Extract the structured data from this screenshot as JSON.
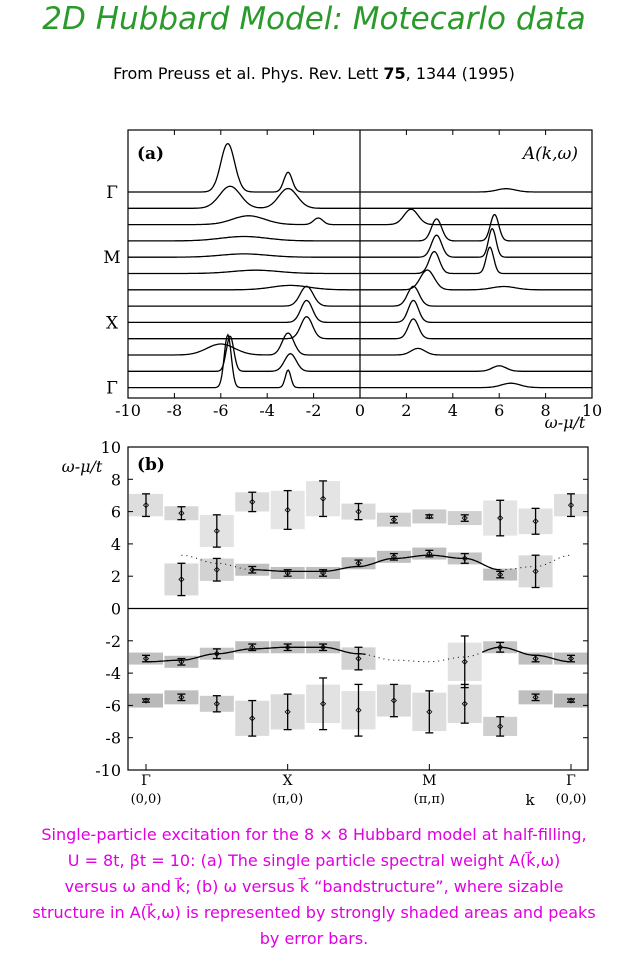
{
  "header": {
    "title": "2D Hubbard Model: Motecarlo data",
    "citation_prefix": "From Preuss et al. Phys. Rev. Lett ",
    "citation_volume": "75",
    "citation_suffix": ", 1344 (1995)"
  },
  "caption": {
    "line1": "Single-particle excitation for the 8 × 8 Hubbard model at half-filling,",
    "line2": "U = 8t, βt = 10: (a) The single particle spectral weight A(k⃗,ω)",
    "line3": "versus ω and k⃗; (b) ω versus k⃗ “bandstructure”, where sizable",
    "line4": "structure in A(k⃗,ω) is represented by strongly shaded areas and peaks",
    "line5": "by error bars."
  },
  "chart_data": [
    {
      "type": "line",
      "panel_label": "(a)",
      "corner_label": "A(k,ω)",
      "xlabel": "ω-μ/t",
      "xlim": [
        -10,
        10
      ],
      "xticks": [
        "-10",
        "-8",
        "-6",
        "-4",
        "-2",
        "0",
        "2",
        "4",
        "6",
        "8",
        "10"
      ],
      "k_labels": [
        "Γ",
        "M",
        "X",
        "Γ"
      ],
      "curves": [
        {
          "offset": 0,
          "peaks": [
            [
              -5.7,
              0.3,
              2.2
            ],
            [
              -3.1,
              0.18,
              0.9
            ],
            [
              6.3,
              0.4,
              0.15
            ]
          ]
        },
        {
          "offset": 1,
          "peaks": [
            [
              -5.6,
              0.45,
              1.0
            ],
            [
              -3.1,
              0.4,
              0.9
            ]
          ]
        },
        {
          "offset": 2,
          "peaks": [
            [
              -4.8,
              0.7,
              0.4
            ],
            [
              -1.8,
              0.2,
              0.3
            ],
            [
              2.2,
              0.3,
              0.7
            ]
          ]
        },
        {
          "offset": 3,
          "peaks": [
            [
              -5.0,
              1.0,
              0.2
            ],
            [
              3.3,
              0.22,
              1.0
            ],
            [
              5.8,
              0.18,
              1.2
            ]
          ]
        },
        {
          "offset": 4,
          "peaks": [
            [
              -5.0,
              1.0,
              0.15
            ],
            [
              3.3,
              0.22,
              1.0
            ],
            [
              5.7,
              0.16,
              1.3
            ]
          ]
        },
        {
          "offset": 5,
          "peaks": [
            [
              -4.5,
              1.0,
              0.15
            ],
            [
              3.2,
              0.22,
              1.0
            ],
            [
              5.6,
              0.16,
              1.2
            ]
          ]
        },
        {
          "offset": 6,
          "peaks": [
            [
              -3.0,
              0.8,
              0.2
            ],
            [
              2.9,
              0.3,
              0.9
            ],
            [
              6.2,
              0.5,
              0.15
            ]
          ]
        },
        {
          "offset": 7,
          "peaks": [
            [
              -2.3,
              0.28,
              0.9
            ],
            [
              2.3,
              0.25,
              0.9
            ]
          ]
        },
        {
          "offset": 8,
          "peaks": [
            [
              -2.3,
              0.25,
              1.0
            ],
            [
              2.3,
              0.22,
              1.0
            ]
          ]
        },
        {
          "offset": 9,
          "peaks": [
            [
              -2.3,
              0.25,
              1.0
            ],
            [
              2.3,
              0.22,
              0.9
            ]
          ]
        },
        {
          "offset": 10,
          "peaks": [
            [
              -3.1,
              0.25,
              1.0
            ],
            [
              -6.0,
              0.6,
              0.5
            ],
            [
              2.5,
              0.3,
              0.3
            ]
          ]
        },
        {
          "offset": 11,
          "peaks": [
            [
              -5.6,
              0.16,
              1.6
            ],
            [
              -3.0,
              0.25,
              0.8
            ],
            [
              6.0,
              0.3,
              0.25
            ]
          ]
        },
        {
          "offset": 12,
          "peaks": [
            [
              -5.7,
              0.15,
              2.4
            ],
            [
              -3.1,
              0.12,
              0.8
            ],
            [
              6.5,
              0.4,
              0.2
            ]
          ]
        }
      ]
    },
    {
      "type": "scatter",
      "panel_label": "(b)",
      "ylabel": "ω-μ/t",
      "xlabel": "k",
      "ylim": [
        -10,
        10
      ],
      "yticks": [
        "10",
        "8",
        "6",
        "4",
        "2",
        "0",
        "-2",
        "-4",
        "-6",
        "-8",
        "-10"
      ],
      "kpoints": [
        {
          "name": "Γ",
          "coord": "(0,0)"
        },
        {
          "name": "X",
          "coord": "(π,0)"
        },
        {
          "name": "M",
          "coord": "(π,π)"
        },
        {
          "name": "Γ",
          "coord": "(0,0)"
        }
      ],
      "x_positions": [
        0,
        1,
        2,
        3,
        4,
        5,
        6,
        7,
        8,
        9,
        10,
        11,
        12
      ],
      "upper_points": [
        {
          "x": 0,
          "y": 6.4,
          "err": 0.7
        },
        {
          "x": 1,
          "y": 5.9,
          "err": 0.4
        },
        {
          "x": 2,
          "y": 4.8,
          "err": 1.0
        },
        {
          "x": 3,
          "y": 6.6,
          "err": 0.6
        },
        {
          "x": 4,
          "y": 6.1,
          "err": 1.2
        },
        {
          "x": 5,
          "y": 6.8,
          "err": 1.1
        },
        {
          "x": 6,
          "y": 6.0,
          "err": 0.5
        },
        {
          "x": 7,
          "y": 5.5,
          "err": 0.2
        },
        {
          "x": 8,
          "y": 5.7,
          "err": 0.1
        },
        {
          "x": 9,
          "y": 5.6,
          "err": 0.2
        },
        {
          "x": 10,
          "y": 5.6,
          "err": 1.1
        },
        {
          "x": 11,
          "y": 5.4,
          "err": 0.8
        },
        {
          "x": 12,
          "y": 6.4,
          "err": 0.7
        }
      ],
      "mid_points": [
        {
          "x": 1,
          "y": 1.8,
          "err": 1.0
        },
        {
          "x": 2,
          "y": 2.4,
          "err": 0.7
        },
        {
          "x": 3,
          "y": 2.4,
          "err": 0.2
        },
        {
          "x": 4,
          "y": 2.2,
          "err": 0.2
        },
        {
          "x": 5,
          "y": 2.2,
          "err": 0.2
        },
        {
          "x": 6,
          "y": 2.8,
          "err": 0.2
        },
        {
          "x": 7,
          "y": 3.2,
          "err": 0.2
        },
        {
          "x": 8,
          "y": 3.4,
          "err": 0.2
        },
        {
          "x": 9,
          "y": 3.1,
          "err": 0.3
        },
        {
          "x": 10,
          "y": 2.1,
          "err": 0.2
        },
        {
          "x": 11,
          "y": 2.3,
          "err": 1.0
        }
      ],
      "lower_points": [
        {
          "x": 0,
          "y": -3.1,
          "err": 0.2
        },
        {
          "x": 1,
          "y": -3.3,
          "err": 0.2
        },
        {
          "x": 2,
          "y": -2.8,
          "err": 0.3
        },
        {
          "x": 3,
          "y": -2.4,
          "err": 0.2
        },
        {
          "x": 4,
          "y": -2.4,
          "err": 0.2
        },
        {
          "x": 5,
          "y": -2.4,
          "err": 0.2
        },
        {
          "x": 6,
          "y": -3.1,
          "err": 0.7
        },
        {
          "x": 9,
          "y": -3.3,
          "err": 1.6
        },
        {
          "x": 10,
          "y": -2.4,
          "err": 0.3
        },
        {
          "x": 11,
          "y": -3.1,
          "err": 0.2
        },
        {
          "x": 12,
          "y": -3.1,
          "err": 0.2
        }
      ],
      "bottom_points": [
        {
          "x": 0,
          "y": -5.7,
          "err": 0.1
        },
        {
          "x": 1,
          "y": -5.5,
          "err": 0.2
        },
        {
          "x": 2,
          "y": -5.9,
          "err": 0.5
        },
        {
          "x": 3,
          "y": -6.8,
          "err": 1.1
        },
        {
          "x": 4,
          "y": -6.4,
          "err": 1.1
        },
        {
          "x": 5,
          "y": -5.9,
          "err": 1.6
        },
        {
          "x": 6,
          "y": -6.3,
          "err": 1.6
        },
        {
          "x": 7,
          "y": -5.7,
          "err": 1.0
        },
        {
          "x": 8,
          "y": -6.4,
          "err": 1.3
        },
        {
          "x": 9,
          "y": -5.9,
          "err": 1.2
        },
        {
          "x": 10,
          "y": -7.3,
          "err": 0.6
        },
        {
          "x": 11,
          "y": -5.5,
          "err": 0.2
        },
        {
          "x": 12,
          "y": -5.7,
          "err": 0.1
        }
      ],
      "upper_band_curve": [
        [
          1,
          3.3
        ],
        [
          2,
          2.8
        ],
        [
          3,
          2.4
        ],
        [
          4,
          2.3
        ],
        [
          5,
          2.3
        ],
        [
          6,
          2.6
        ],
        [
          7,
          3.1
        ],
        [
          8,
          3.3
        ],
        [
          9,
          3.1
        ],
        [
          10,
          2.4
        ],
        [
          11,
          2.6
        ],
        [
          12,
          3.3
        ]
      ],
      "lower_band_curve": [
        [
          0,
          -3.3
        ],
        [
          1,
          -3.2
        ],
        [
          2,
          -2.8
        ],
        [
          3,
          -2.5
        ],
        [
          4,
          -2.4
        ],
        [
          5,
          -2.4
        ],
        [
          6,
          -2.8
        ],
        [
          7,
          -3.2
        ],
        [
          8,
          -3.3
        ],
        [
          9,
          -3.0
        ],
        [
          10,
          -2.4
        ],
        [
          11,
          -2.9
        ],
        [
          12,
          -3.3
        ]
      ],
      "solid_segments": [
        [
          3,
          10
        ],
        [
          0,
          6.2
        ],
        [
          9.5,
          12
        ]
      ]
    }
  ]
}
